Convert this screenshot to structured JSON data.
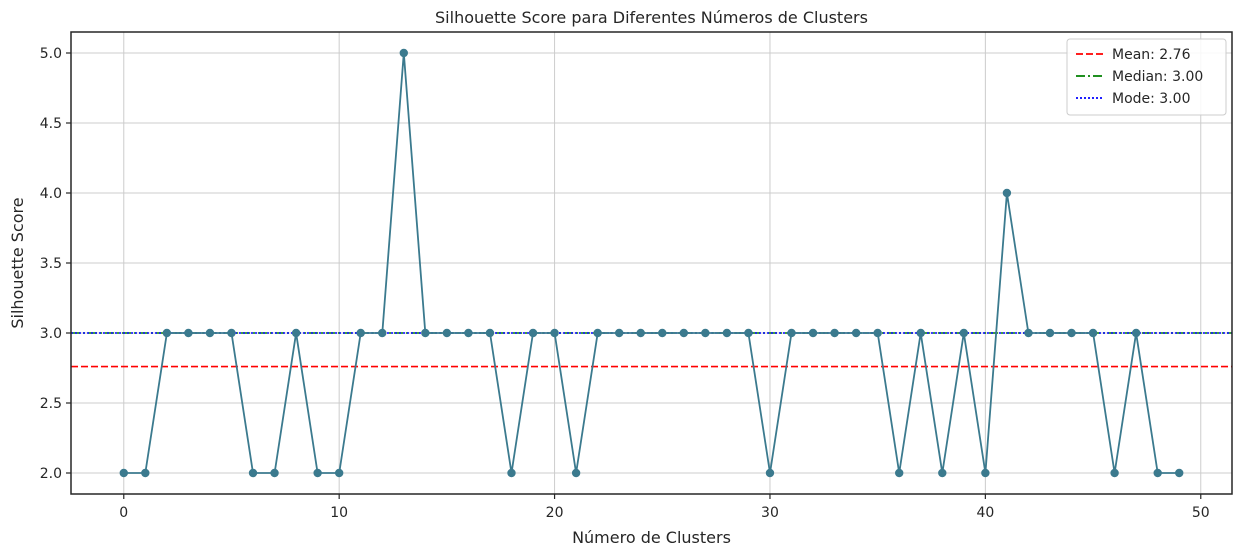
{
  "chart_data": {
    "type": "line",
    "title": "Silhouette Score para Diferentes Números de Clusters",
    "xlabel": "Número de Clusters",
    "ylabel": "Silhouette Score",
    "xlim": [
      -2.45,
      51.45
    ],
    "ylim": [
      1.85,
      5.15
    ],
    "xticks": [
      0,
      10,
      20,
      30,
      40,
      50
    ],
    "xtick_labels": [
      "0",
      "10",
      "20",
      "30",
      "40",
      "50"
    ],
    "yticks": [
      2.0,
      2.5,
      3.0,
      3.5,
      4.0,
      4.5,
      5.0
    ],
    "ytick_labels": [
      "2.0",
      "2.5",
      "3.0",
      "3.5",
      "4.0",
      "4.5",
      "5.0"
    ],
    "grid": true,
    "legend_position": "top-right",
    "series": [
      {
        "color": "#3b7a8e",
        "marker": "circle",
        "x": [
          0,
          1,
          2,
          3,
          4,
          5,
          6,
          7,
          8,
          9,
          10,
          11,
          12,
          13,
          14,
          15,
          16,
          17,
          18,
          19,
          20,
          21,
          22,
          23,
          24,
          25,
          26,
          27,
          28,
          29,
          30,
          31,
          32,
          33,
          34,
          35,
          36,
          37,
          38,
          39,
          40,
          41,
          42,
          43,
          44,
          45,
          46,
          47,
          48,
          49
        ],
        "y": [
          2,
          2,
          3,
          3,
          3,
          3,
          2,
          2,
          3,
          2,
          2,
          3,
          3,
          5,
          3,
          3,
          3,
          3,
          2,
          3,
          3,
          2,
          3,
          3,
          3,
          3,
          3,
          3,
          3,
          3,
          2,
          3,
          3,
          3,
          3,
          3,
          2,
          3,
          2,
          3,
          2,
          4,
          3,
          3,
          3,
          3,
          2,
          3,
          2,
          2
        ]
      }
    ],
    "reference_lines": [
      {
        "name": "Mean: 2.76",
        "value": 2.76,
        "color": "#ff0000",
        "style": "dashed"
      },
      {
        "name": "Median: 3.00",
        "value": 3.0,
        "color": "#008000",
        "style": "dashdot"
      },
      {
        "name": "Mode: 3.00",
        "value": 3.0,
        "color": "#0000ff",
        "style": "dotted"
      }
    ]
  }
}
